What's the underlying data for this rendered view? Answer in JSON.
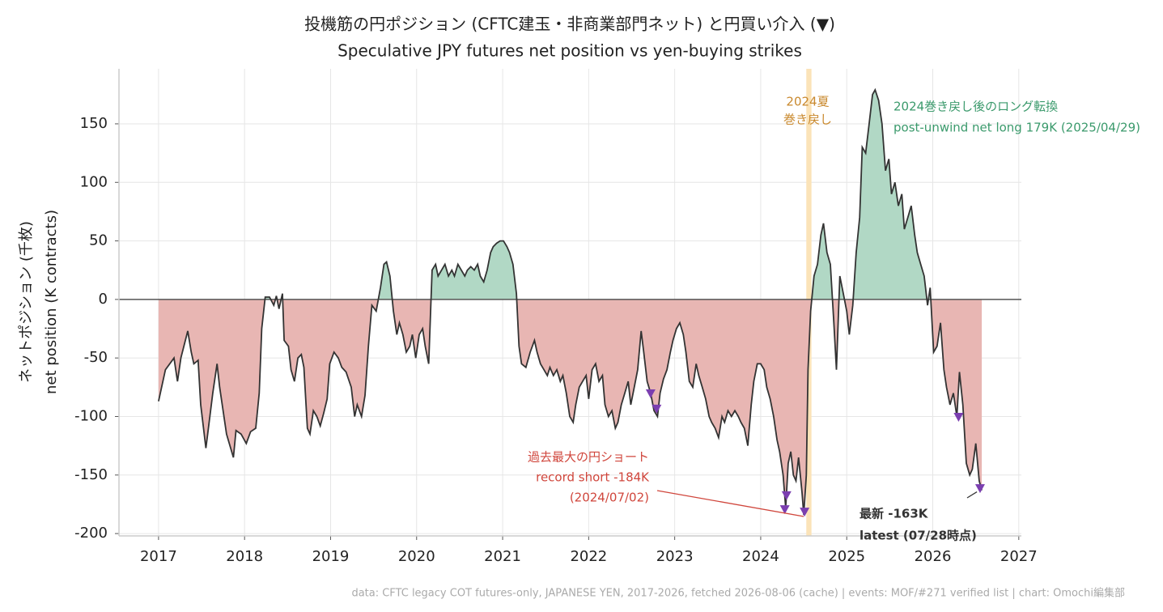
{
  "chart_data": {
    "type": "line",
    "title": [
      "投機筋の円ポジション (CFTC建玉・非商業部門ネット) と円買い介入 (▼)",
      "Speculative JPY futures net position vs yen-buying strikes"
    ],
    "y_label": [
      "ネットポジション (千枚)",
      "net position (K contracts)"
    ],
    "source": "data: CFTC legacy COT futures-only, JAPANESE YEN, 2017-2026, fetched 2026-08-06 (cache) | events: MOF/#271 verified list | chart: Omochi編集部",
    "xlim": [
      2016.54,
      2027.03
    ],
    "ylim": [
      -202,
      197
    ],
    "xticks": [
      2017,
      2018,
      2019,
      2020,
      2021,
      2022,
      2023,
      2024,
      2025,
      2026,
      2027
    ],
    "yticks": [
      150,
      100,
      50,
      0,
      -50,
      -100,
      -150,
      -200
    ],
    "grid": true,
    "line": {
      "color": "#333333",
      "pos_fill": "#b1d8c5",
      "neg_fill": "#e8b6b3",
      "x": [
        2017.0,
        2017.08,
        2017.18,
        2017.22,
        2017.26,
        2017.34,
        2017.38,
        2017.41,
        2017.46,
        2017.49,
        2017.55,
        2017.58,
        2017.63,
        2017.68,
        2017.71,
        2017.79,
        2017.87,
        2017.9,
        2017.96,
        2018.02,
        2018.07,
        2018.13,
        2018.17,
        2018.2,
        2018.24,
        2018.29,
        2018.34,
        2018.37,
        2018.4,
        2018.44,
        2018.46,
        2018.51,
        2018.54,
        2018.58,
        2018.62,
        2018.66,
        2018.69,
        2018.73,
        2018.76,
        2018.8,
        2018.84,
        2018.88,
        2018.92,
        2018.96,
        2018.99,
        2019.04,
        2019.09,
        2019.13,
        2019.18,
        2019.24,
        2019.28,
        2019.31,
        2019.36,
        2019.4,
        2019.44,
        2019.48,
        2019.53,
        2019.58,
        2019.62,
        2019.65,
        2019.69,
        2019.73,
        2019.77,
        2019.8,
        2019.84,
        2019.88,
        2019.92,
        2019.95,
        2019.99,
        2020.03,
        2020.07,
        2020.1,
        2020.14,
        2020.18,
        2020.22,
        2020.25,
        2020.29,
        2020.33,
        2020.37,
        2020.41,
        2020.44,
        2020.48,
        2020.52,
        2020.56,
        2020.59,
        2020.63,
        2020.67,
        2020.71,
        2020.74,
        2020.78,
        2020.82,
        2020.86,
        2020.89,
        2020.93,
        2020.97,
        2021.01,
        2021.05,
        2021.08,
        2021.12,
        2021.16,
        2021.19,
        2021.22,
        2021.27,
        2021.32,
        2021.37,
        2021.4,
        2021.44,
        2021.48,
        2021.52,
        2021.55,
        2021.59,
        2021.63,
        2021.67,
        2021.7,
        2021.74,
        2021.78,
        2021.82,
        2021.85,
        2021.89,
        2021.93,
        2021.97,
        2022.0,
        2022.04,
        2022.08,
        2022.12,
        2022.16,
        2022.19,
        2022.23,
        2022.27,
        2022.31,
        2022.34,
        2022.38,
        2022.42,
        2022.46,
        2022.49,
        2022.53,
        2022.57,
        2022.61,
        2022.64,
        2022.68,
        2022.72,
        2022.76,
        2022.8,
        2022.83,
        2022.87,
        2022.91,
        2022.95,
        2022.98,
        2023.02,
        2023.06,
        2023.1,
        2023.13,
        2023.17,
        2023.21,
        2023.25,
        2023.28,
        2023.32,
        2023.36,
        2023.4,
        2023.43,
        2023.47,
        2023.51,
        2023.55,
        2023.58,
        2023.62,
        2023.66,
        2023.7,
        2023.74,
        2023.77,
        2023.81,
        2023.85,
        2023.89,
        2023.92,
        2023.96,
        2024.0,
        2024.04,
        2024.07,
        2024.11,
        2024.15,
        2024.19,
        2024.22,
        2024.26,
        2024.29,
        2024.32,
        2024.35,
        2024.38,
        2024.41,
        2024.44,
        2024.48,
        2024.5,
        2024.53,
        2024.55,
        2024.58,
        2024.62,
        2024.66,
        2024.7,
        2024.73,
        2024.77,
        2024.81,
        2024.85,
        2024.88,
        2024.92,
        2024.96,
        2025.0,
        2025.03,
        2025.07,
        2025.11,
        2025.15,
        2025.18,
        2025.22,
        2025.26,
        2025.3,
        2025.33,
        2025.37,
        2025.41,
        2025.45,
        2025.49,
        2025.52,
        2025.56,
        2025.6,
        2025.64,
        2025.67,
        2025.71,
        2025.75,
        2025.79,
        2025.82,
        2025.86,
        2025.9,
        2025.94,
        2025.97,
        2026.01,
        2026.05,
        2026.09,
        2026.13,
        2026.16,
        2026.2,
        2026.24,
        2026.28,
        2026.31,
        2026.35,
        2026.39,
        2026.43,
        2026.46,
        2026.5,
        2026.54,
        2026.57
      ],
      "values": [
        -87,
        -60,
        -50,
        -70,
        -50,
        -27,
        -45,
        -55,
        -52,
        -90,
        -127,
        -110,
        -80,
        -55,
        -75,
        -115,
        -135,
        -112,
        -115,
        -123,
        -113,
        -110,
        -80,
        -25,
        2,
        2,
        -5,
        3,
        -8,
        5,
        -35,
        -40,
        -60,
        -70,
        -50,
        -47,
        -58,
        -110,
        -115,
        -95,
        -100,
        -108,
        -97,
        -85,
        -55,
        -45,
        -50,
        -58,
        -62,
        -75,
        -100,
        -90,
        -100,
        -82,
        -40,
        -5,
        -10,
        10,
        30,
        32,
        20,
        -10,
        -30,
        -20,
        -30,
        -45,
        -40,
        -30,
        -50,
        -30,
        -25,
        -40,
        -55,
        25,
        30,
        20,
        25,
        30,
        20,
        25,
        20,
        30,
        25,
        20,
        25,
        28,
        25,
        30,
        20,
        15,
        25,
        40,
        45,
        48,
        50,
        50,
        45,
        40,
        30,
        5,
        -40,
        -55,
        -58,
        -45,
        -35,
        -45,
        -55,
        -60,
        -65,
        -58,
        -65,
        -60,
        -70,
        -65,
        -80,
        -100,
        -105,
        -90,
        -75,
        -70,
        -65,
        -85,
        -60,
        -55,
        -70,
        -65,
        -90,
        -100,
        -95,
        -110,
        -105,
        -90,
        -80,
        -70,
        -90,
        -75,
        -60,
        -27,
        -45,
        -70,
        -80,
        -95,
        -100,
        -80,
        -68,
        -60,
        -45,
        -35,
        -25,
        -20,
        -30,
        -45,
        -70,
        -75,
        -55,
        -65,
        -75,
        -85,
        -100,
        -105,
        -110,
        -118,
        -100,
        -105,
        -95,
        -100,
        -95,
        -100,
        -105,
        -110,
        -125,
        -90,
        -70,
        -55,
        -55,
        -60,
        -75,
        -85,
        -100,
        -120,
        -130,
        -150,
        -178,
        -140,
        -130,
        -150,
        -155,
        -135,
        -165,
        -184,
        -150,
        -60,
        -10,
        20,
        30,
        55,
        65,
        40,
        30,
        -20,
        -60,
        20,
        5,
        -10,
        -30,
        -5,
        40,
        70,
        130,
        125,
        150,
        175,
        179,
        170,
        150,
        110,
        120,
        90,
        100,
        80,
        90,
        60,
        70,
        80,
        55,
        40,
        30,
        20,
        -5,
        10,
        -45,
        -40,
        -20,
        -60,
        -75,
        -90,
        -80,
        -100,
        -62,
        -90,
        -140,
        -150,
        -145,
        -123,
        -155,
        -163
      ]
    },
    "strikes": {
      "color": "#7b3fb0",
      "x": [
        2022.72,
        2022.79,
        2024.28,
        2024.3,
        2024.51,
        2026.3,
        2026.55
      ],
      "values": [
        -81,
        -94,
        -180,
        -168,
        -182,
        -101,
        -162
      ]
    },
    "span": {
      "x": [
        2024.53,
        2024.59
      ],
      "color": "#fbe3b8"
    },
    "annotations": [
      {
        "text": [
          "2024夏",
          "巻き戻し"
        ],
        "color": "#c9892e"
      },
      {
        "text": [
          "2024巻き戻し後のロング転換",
          "post-unwind net long 179K (2025/04/29)"
        ],
        "color": "#3b9a6c"
      },
      {
        "text": [
          "過去最大の円ショート",
          "record short -184K",
          "(2024/07/02)"
        ],
        "color": "#d0463c"
      },
      {
        "text": [
          "最新 -163K",
          "latest (07/28時点)"
        ],
        "color": "#333333"
      }
    ]
  }
}
